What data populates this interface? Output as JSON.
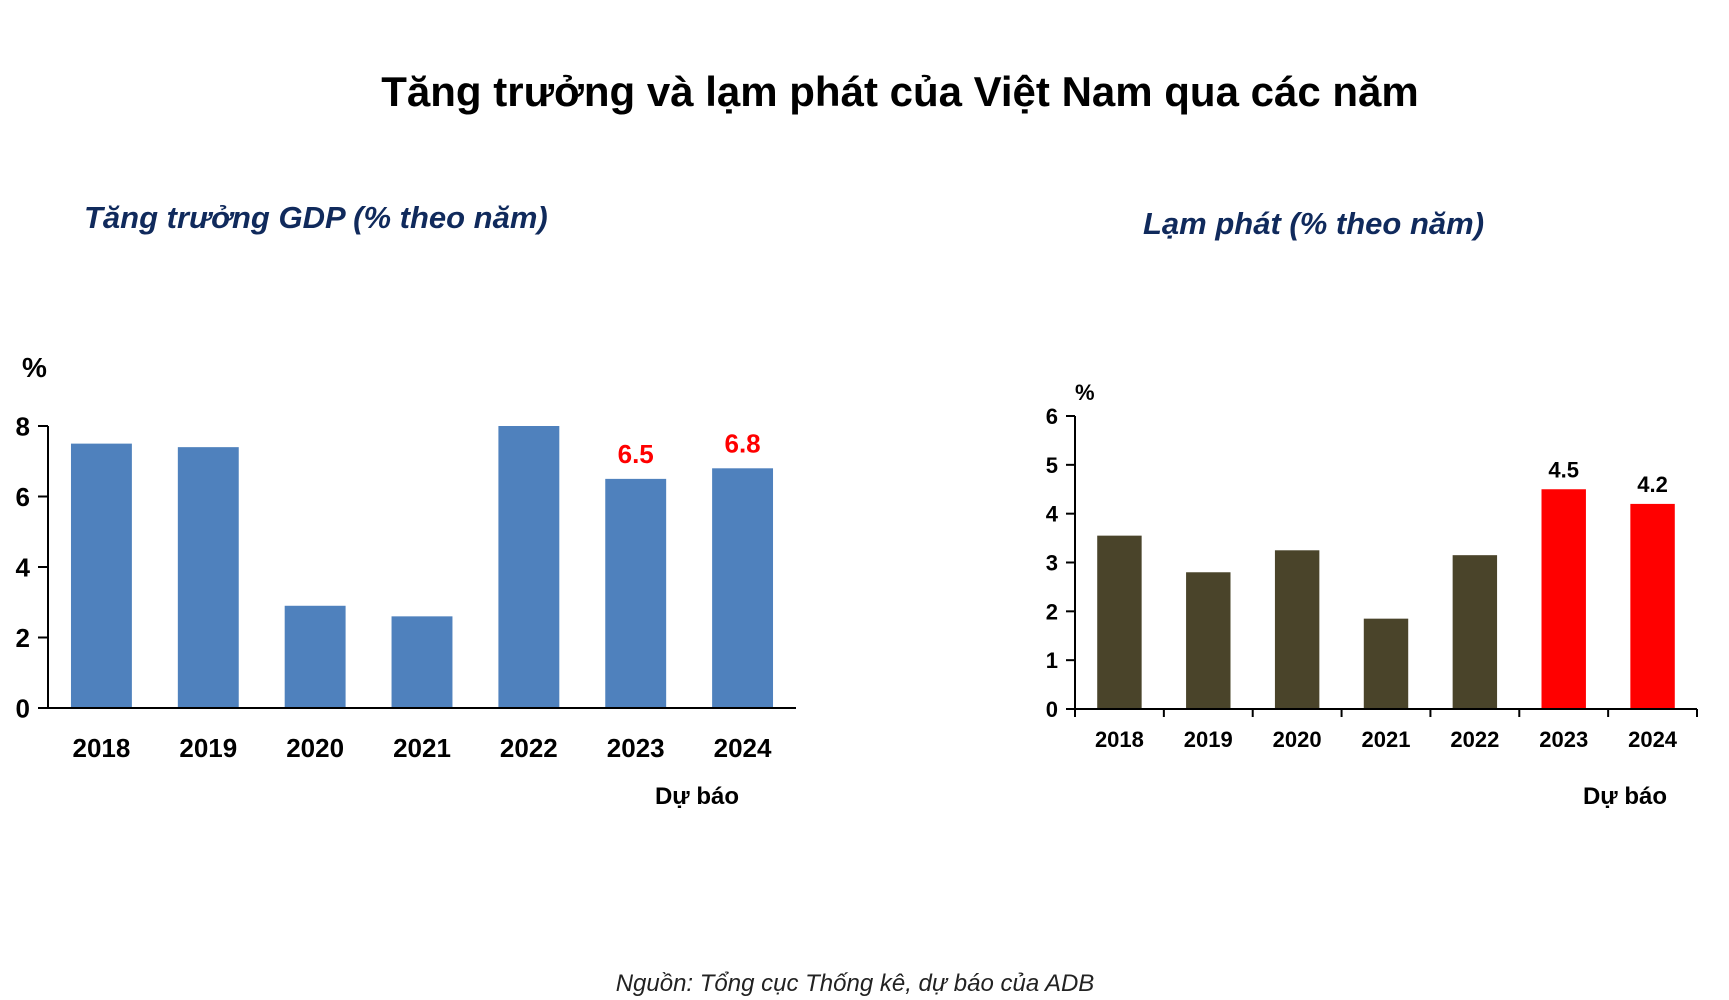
{
  "title": "Tăng trưởng và lạm phát của Việt Nam qua các năm",
  "source": "Nguồn: Tổng cục Thống kê, dự báo của ADB",
  "colors": {
    "gdp_bar": "#4f81bd",
    "inflation_bar": "#4a442a",
    "forecast_inflation_bar": "#ff0000",
    "forecast_label": "#ff0000",
    "chart_title": "#102a5c"
  },
  "chart_data": [
    {
      "id": "gdp",
      "type": "bar",
      "title": "Tăng trưởng GDP (% theo năm)",
      "ylabel": "%",
      "xlabel": "",
      "categories": [
        "2018",
        "2019",
        "2020",
        "2021",
        "2022",
        "2023",
        "2024"
      ],
      "values": [
        7.5,
        7.4,
        2.9,
        2.6,
        8.0,
        6.5,
        6.8
      ],
      "data_labels": [
        "",
        "",
        "",
        "",
        "",
        "6.5",
        "6.8"
      ],
      "forecast_note": "Dự báo",
      "ylim": [
        0,
        8
      ],
      "yticks": [
        0,
        2,
        4,
        6,
        8
      ],
      "grid": false,
      "legend": "none"
    },
    {
      "id": "inflation",
      "type": "bar",
      "title": "Lạm phát (% theo năm)",
      "ylabel": "%",
      "xlabel": "",
      "categories": [
        "2018",
        "2019",
        "2020",
        "2021",
        "2022",
        "2023",
        "2024"
      ],
      "values": [
        3.55,
        2.8,
        3.25,
        1.85,
        3.15,
        4.5,
        4.2
      ],
      "data_labels": [
        "",
        "",
        "",
        "",
        "",
        "4.5",
        "4.2"
      ],
      "forecast_note": "Dự báo",
      "ylim": [
        0,
        6
      ],
      "yticks": [
        0,
        1,
        2,
        3,
        4,
        5,
        6
      ],
      "grid": false,
      "legend": "none"
    }
  ]
}
